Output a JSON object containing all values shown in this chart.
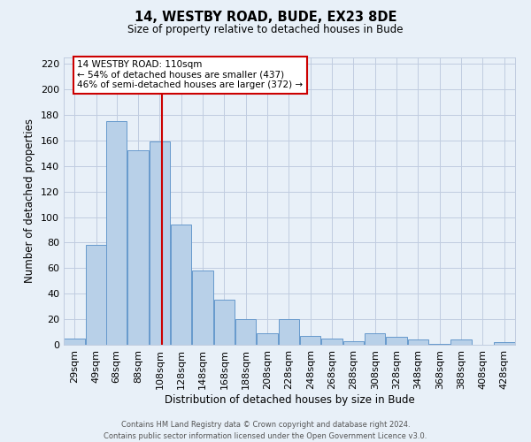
{
  "title": "14, WESTBY ROAD, BUDE, EX23 8DE",
  "subtitle": "Size of property relative to detached houses in Bude",
  "xlabel": "Distribution of detached houses by size in Bude",
  "ylabel": "Number of detached properties",
  "bar_color": "#b8d0e8",
  "bar_edge_color": "#6699cc",
  "background_color": "#e8f0f8",
  "grid_color": "#c0cce0",
  "vline_value": 110,
  "vline_color": "#cc0000",
  "annotation_title": "14 WESTBY ROAD: 110sqm",
  "annotation_line1": "← 54% of detached houses are smaller (437)",
  "annotation_line2": "46% of semi-detached houses are larger (372) →",
  "annotation_box_color": "#ffffff",
  "annotation_box_edge": "#cc0000",
  "bin_centers": [
    29,
    49,
    68,
    88,
    108,
    128,
    148,
    168,
    188,
    208,
    228,
    248,
    268,
    288,
    308,
    328,
    348,
    368,
    388,
    408,
    428
  ],
  "bin_width": 20,
  "bin_labels": [
    "29sqm",
    "49sqm",
    "68sqm",
    "88sqm",
    "108sqm",
    "128sqm",
    "148sqm",
    "168sqm",
    "188sqm",
    "208sqm",
    "228sqm",
    "248sqm",
    "268sqm",
    "288sqm",
    "308sqm",
    "328sqm",
    "348sqm",
    "368sqm",
    "388sqm",
    "408sqm",
    "428sqm"
  ],
  "values": [
    5,
    78,
    175,
    152,
    159,
    94,
    58,
    35,
    20,
    9,
    20,
    7,
    5,
    3,
    9,
    6,
    4,
    1,
    4,
    0,
    2
  ],
  "ylim": [
    0,
    225
  ],
  "yticks": [
    0,
    20,
    40,
    60,
    80,
    100,
    120,
    140,
    160,
    180,
    200,
    220
  ],
  "footer1": "Contains HM Land Registry data © Crown copyright and database right 2024.",
  "footer2": "Contains public sector information licensed under the Open Government Licence v3.0."
}
